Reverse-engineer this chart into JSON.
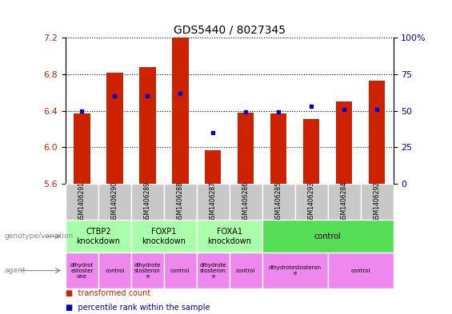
{
  "title": "GDS5440 / 8027345",
  "samples": [
    "GSM1406291",
    "GSM1406290",
    "GSM1406289",
    "GSM1406288",
    "GSM1406287",
    "GSM1406286",
    "GSM1406285",
    "GSM1406293",
    "GSM1406284",
    "GSM1406292"
  ],
  "transformed_count": [
    6.37,
    6.82,
    6.88,
    7.2,
    5.97,
    6.38,
    6.37,
    6.31,
    6.5,
    6.73
  ],
  "percentile_rank": [
    50,
    60,
    60,
    62,
    35,
    49,
    49,
    53,
    51,
    51
  ],
  "ylim_left": [
    5.6,
    7.2
  ],
  "ylim_right": [
    0,
    100
  ],
  "yticks_left": [
    5.6,
    6.0,
    6.4,
    6.8,
    7.2
  ],
  "yticks_right": [
    0,
    25,
    50,
    75,
    100
  ],
  "bar_color": "#cc2200",
  "dot_color": "#0000cc",
  "plot_bg": "#ffffff",
  "genotype_groups": [
    {
      "label": "CTBP2\nknockdown",
      "start": 0,
      "end": 2,
      "color": "#aaffaa"
    },
    {
      "label": "FOXP1\nknockdown",
      "start": 2,
      "end": 4,
      "color": "#aaffaa"
    },
    {
      "label": "FOXA1\nknockdown",
      "start": 4,
      "end": 6,
      "color": "#aaffaa"
    },
    {
      "label": "control",
      "start": 6,
      "end": 10,
      "color": "#55dd55"
    }
  ],
  "agent_groups": [
    {
      "label": "dihydrot\nestoster\none",
      "start": 0,
      "end": 1,
      "color": "#ee88ee"
    },
    {
      "label": "control",
      "start": 1,
      "end": 2,
      "color": "#ee88ee"
    },
    {
      "label": "dihydrote\nstosteron\ne",
      "start": 2,
      "end": 3,
      "color": "#ee88ee"
    },
    {
      "label": "control",
      "start": 3,
      "end": 4,
      "color": "#ee88ee"
    },
    {
      "label": "dihydrote\nstosteron\ne",
      "start": 4,
      "end": 5,
      "color": "#ee88ee"
    },
    {
      "label": "control",
      "start": 5,
      "end": 6,
      "color": "#ee88ee"
    },
    {
      "label": "dihydrotestosteron\ne",
      "start": 6,
      "end": 8,
      "color": "#ee88ee"
    },
    {
      "label": "control",
      "start": 8,
      "end": 10,
      "color": "#ee88ee"
    }
  ],
  "left_ylabel_color": "#cc2200",
  "right_ylabel_color": "#0000cc",
  "bar_width": 0.5,
  "sample_box_color": "#c8c8c8"
}
